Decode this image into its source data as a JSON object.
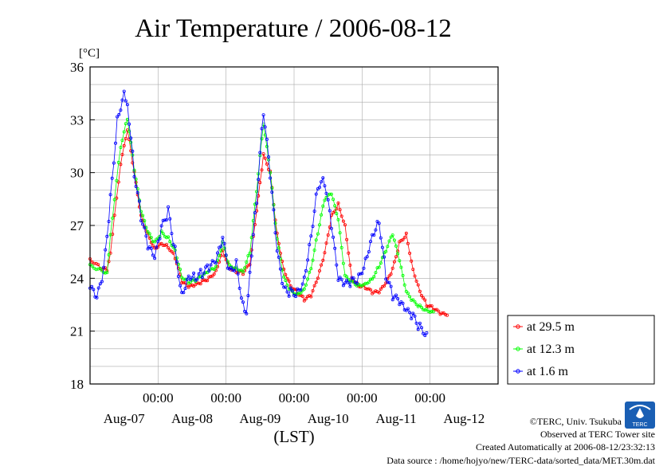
{
  "chart_data": {
    "type": "line",
    "title": "Air Temperature / 2006-08-12",
    "ylabel": "[°C]",
    "xlabel": "(LST)",
    "ylim": [
      18,
      36
    ],
    "yticks": [
      "18",
      "21",
      "24",
      "27",
      "30",
      "33",
      "36"
    ],
    "xlim_days": [
      0,
      6
    ],
    "time_ticks": [
      "00:00",
      "00:00",
      "00:00",
      "00:00",
      "00:00"
    ],
    "date_labels": [
      "Aug-07",
      "Aug-08",
      "Aug-09",
      "Aug-10",
      "Aug-11",
      "Aug-12"
    ],
    "grid": true,
    "legend_position": "right",
    "colors": {
      "red": "#ff0000",
      "green": "#00ff00",
      "blue": "#0000ff",
      "frame": "#000000",
      "grid": "#aaaaaa"
    },
    "series": [
      {
        "name": "at 29.5 m",
        "color": "#ff0000",
        "x": [
          0,
          0.15,
          0.25,
          0.3,
          0.45,
          0.55,
          0.65,
          0.75,
          0.85,
          0.95,
          1.05,
          1.15,
          1.25,
          1.35,
          1.45,
          1.55,
          1.65,
          1.75,
          1.85,
          1.95,
          2.05,
          2.15,
          2.25,
          2.35,
          2.45,
          2.55,
          2.65,
          2.75,
          2.85,
          2.95,
          3.05,
          3.15,
          3.25,
          3.35,
          3.45,
          3.55,
          3.65,
          3.75,
          3.85,
          3.95,
          4.05,
          4.15,
          4.25,
          4.35,
          4.45,
          4.55,
          4.65,
          4.75,
          4.85,
          4.95,
          5.05,
          5.15,
          5.25,
          5.35,
          5.45,
          5.55,
          5.65,
          5.75,
          5.85,
          5.95,
          6.0
        ],
        "y": [
          25.1,
          24.6,
          24.5,
          25.5,
          30.5,
          32.4,
          30.0,
          27.5,
          26.5,
          25.7,
          26.0,
          25.8,
          25.2,
          23.8,
          23.5,
          23.6,
          23.8,
          24.0,
          24.4,
          25.6,
          24.6,
          24.4,
          24.3,
          24.8,
          27.8,
          31.0,
          30.0,
          26.5,
          24.5,
          23.6,
          23.2,
          22.8,
          23.0,
          24.0,
          25.4,
          27.5,
          28.2,
          27.0,
          24.0,
          23.6,
          23.5,
          23.2,
          23.2,
          23.7,
          24.5,
          26.0,
          26.5,
          24.5,
          23.3,
          22.5,
          22.3,
          22.0,
          21.9,
          null,
          null,
          null,
          null,
          null,
          null,
          null,
          null
        ]
      },
      {
        "name": "at 12.3 m",
        "color": "#00ff00",
        "x": [
          0,
          0.15,
          0.25,
          0.3,
          0.45,
          0.55,
          0.65,
          0.75,
          0.85,
          0.95,
          1.05,
          1.15,
          1.25,
          1.35,
          1.45,
          1.55,
          1.65,
          1.75,
          1.85,
          1.95,
          2.05,
          2.15,
          2.25,
          2.35,
          2.45,
          2.55,
          2.65,
          2.75,
          2.85,
          2.95,
          3.05,
          3.15,
          3.25,
          3.35,
          3.45,
          3.55,
          3.65,
          3.75,
          3.85,
          3.95,
          4.05,
          4.15,
          4.25,
          4.35,
          4.45,
          4.55,
          4.65,
          4.75,
          4.85,
          4.95,
          5.05,
          5.15,
          5.25
        ],
        "y": [
          24.7,
          24.5,
          24.3,
          26.5,
          31.5,
          33.1,
          30.2,
          27.8,
          26.6,
          26.0,
          26.6,
          26.3,
          25.6,
          24.1,
          23.8,
          23.9,
          24.1,
          24.4,
          24.6,
          26.0,
          24.7,
          24.6,
          24.4,
          25.5,
          29.0,
          32.8,
          30.0,
          26.2,
          24.0,
          23.3,
          23.1,
          23.4,
          24.6,
          26.6,
          28.5,
          28.8,
          27.3,
          24.1,
          23.8,
          23.6,
          23.7,
          24.0,
          24.7,
          25.6,
          26.5,
          25.0,
          23.2,
          22.7,
          22.4,
          22.2,
          22.1,
          null,
          null
        ]
      },
      {
        "name": "at 1.6 m",
        "color": "#0000ff",
        "x": [
          0,
          0.1,
          0.2,
          0.3,
          0.4,
          0.5,
          0.55,
          0.65,
          0.75,
          0.85,
          0.95,
          1.05,
          1.15,
          1.25,
          1.35,
          1.45,
          1.55,
          1.65,
          1.75,
          1.85,
          1.95,
          2.05,
          2.15,
          2.25,
          2.3,
          2.35,
          2.45,
          2.55,
          2.65,
          2.75,
          2.85,
          2.95,
          3.05,
          3.15,
          3.25,
          3.35,
          3.45,
          3.55,
          3.65,
          3.75,
          3.85,
          3.95,
          4.05,
          4.15,
          4.25,
          4.35,
          4.45,
          4.55,
          4.65,
          4.75,
          4.85,
          4.95,
          5.05,
          5.15
        ],
        "y": [
          23.5,
          22.8,
          24.4,
          28.5,
          33.0,
          34.6,
          34.0,
          30.0,
          27.5,
          25.8,
          25.1,
          26.8,
          27.8,
          25.6,
          23.1,
          24.2,
          24.1,
          24.3,
          24.6,
          24.9,
          26.2,
          24.3,
          24.8,
          22.5,
          22.0,
          24.5,
          28.5,
          33.5,
          29.8,
          25.5,
          23.3,
          23.2,
          23.2,
          24.0,
          26.5,
          29.3,
          29.5,
          27.0,
          23.9,
          23.6,
          23.8,
          24.0,
          25.0,
          26.5,
          27.3,
          24.2,
          23.0,
          22.6,
          22.1,
          21.8,
          21.2,
          20.9,
          null,
          null
        ]
      }
    ]
  },
  "legend": {
    "items": [
      "at 29.5 m",
      "at 12.3 m",
      "at 1.6 m"
    ]
  },
  "credits": {
    "copyright": "©TERC, Univ. Tsukuba",
    "observed": "Observed at TERC Tower site",
    "created": "Created Automatically at 2006-08-12/23:32:13",
    "source": "Data source : /home/hojyo/new/TERC-data/sorted_data/MET.30m.dat"
  },
  "logo": {
    "name": "TERC logo",
    "text": "TERC"
  }
}
